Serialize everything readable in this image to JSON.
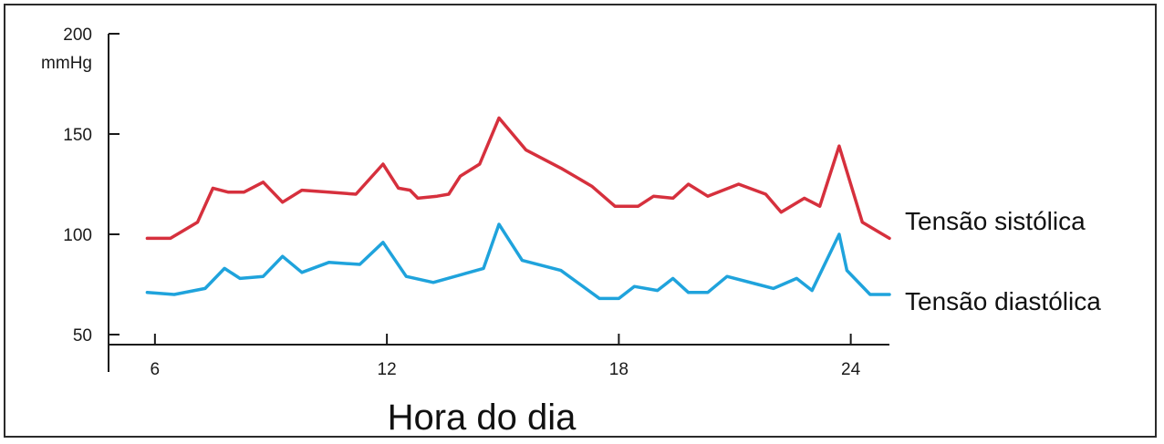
{
  "chart_data": {
    "type": "line",
    "ylabel_top": "200",
    "yunit": "mmHg",
    "xlabel": "Hora do dia",
    "xlim": [
      4.8,
      25
    ],
    "ylim": [
      45,
      200
    ],
    "xticks": [
      6,
      12,
      18,
      24
    ],
    "yticks": [
      50,
      100,
      150
    ],
    "grid": false,
    "legend": "right, inline labels at line ends",
    "series": [
      {
        "name": "Tensão sistólica",
        "color": "#d6303d",
        "points": [
          [
            5.8,
            98
          ],
          [
            6.4,
            98
          ],
          [
            7.1,
            106
          ],
          [
            7.5,
            123
          ],
          [
            7.9,
            121
          ],
          [
            8.3,
            121
          ],
          [
            8.8,
            126
          ],
          [
            9.3,
            116
          ],
          [
            9.8,
            122
          ],
          [
            10.5,
            121
          ],
          [
            11.2,
            120
          ],
          [
            11.9,
            135
          ],
          [
            12.3,
            123
          ],
          [
            12.6,
            122
          ],
          [
            12.8,
            118
          ],
          [
            13.3,
            119
          ],
          [
            13.6,
            120
          ],
          [
            13.9,
            129
          ],
          [
            14.4,
            135
          ],
          [
            14.9,
            158
          ],
          [
            15.6,
            142
          ],
          [
            16.5,
            133
          ],
          [
            17.3,
            124
          ],
          [
            17.9,
            114
          ],
          [
            18.5,
            114
          ],
          [
            18.9,
            119
          ],
          [
            19.4,
            118
          ],
          [
            19.8,
            125
          ],
          [
            20.3,
            119
          ],
          [
            21.1,
            125
          ],
          [
            21.8,
            120
          ],
          [
            22.2,
            111
          ],
          [
            22.8,
            118
          ],
          [
            23.2,
            114
          ],
          [
            23.7,
            144
          ],
          [
            24.3,
            106
          ],
          [
            25.0,
            98
          ]
        ]
      },
      {
        "name": "Tensão diastólica",
        "color": "#1fa3dc",
        "points": [
          [
            5.8,
            71
          ],
          [
            6.5,
            70
          ],
          [
            7.3,
            73
          ],
          [
            7.8,
            83
          ],
          [
            8.2,
            78
          ],
          [
            8.8,
            79
          ],
          [
            9.3,
            89
          ],
          [
            9.8,
            81
          ],
          [
            10.5,
            86
          ],
          [
            11.3,
            85
          ],
          [
            11.9,
            96
          ],
          [
            12.5,
            79
          ],
          [
            13.2,
            76
          ],
          [
            14.5,
            83
          ],
          [
            14.9,
            105
          ],
          [
            15.5,
            87
          ],
          [
            16.5,
            82
          ],
          [
            17.5,
            68
          ],
          [
            18.0,
            68
          ],
          [
            18.4,
            74
          ],
          [
            19.0,
            72
          ],
          [
            19.4,
            78
          ],
          [
            19.8,
            71
          ],
          [
            20.3,
            71
          ],
          [
            20.8,
            79
          ],
          [
            21.6,
            75
          ],
          [
            22.0,
            73
          ],
          [
            22.6,
            78
          ],
          [
            23.0,
            72
          ],
          [
            23.7,
            100
          ],
          [
            23.9,
            82
          ],
          [
            24.5,
            70
          ],
          [
            25.0,
            70
          ]
        ]
      }
    ]
  }
}
